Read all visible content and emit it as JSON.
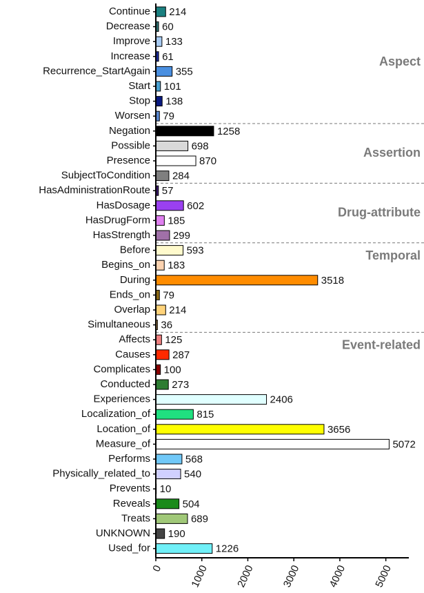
{
  "chart_data": {
    "type": "bar",
    "orientation": "horizontal",
    "xlim": [
      0,
      5500
    ],
    "xticks": [
      0,
      1000,
      2000,
      3000,
      4000,
      5000
    ],
    "groups": [
      {
        "name": "Aspect",
        "categories": [
          "Continue",
          "Decrease",
          "Improve",
          "Increase",
          "Recurrence_StartAgain",
          "Start",
          "Stop",
          "Worsen"
        ],
        "values": [
          214,
          60,
          133,
          61,
          355,
          101,
          138,
          79
        ],
        "colors": [
          "#1a8080",
          "#2f7070",
          "#a8cbf2",
          "#1a2a9a",
          "#4a8fe0",
          "#4aa2d2",
          "#0a1a80",
          "#5a88d0"
        ]
      },
      {
        "name": "Assertion",
        "categories": [
          "Negation",
          "Possible",
          "Presence",
          "SubjectToCondition"
        ],
        "values": [
          1258,
          698,
          870,
          284
        ],
        "colors": [
          "#000000",
          "#d9d9d9",
          "#ffffff",
          "#7f7f7f"
        ]
      },
      {
        "name": "Drug-attribute",
        "categories": [
          "HasAdministrationRoute",
          "HasDosage",
          "HasDrugForm",
          "HasStrength"
        ],
        "values": [
          57,
          602,
          185,
          299
        ],
        "colors": [
          "#3a1a6a",
          "#9a40f0",
          "#e080f0",
          "#a070a8"
        ]
      },
      {
        "name": "Temporal",
        "categories": [
          "Before",
          "Begins_on",
          "During",
          "Ends_on",
          "Overlap",
          "Simultaneous"
        ],
        "values": [
          593,
          183,
          3518,
          79,
          214,
          36
        ],
        "colors": [
          "#fffacc",
          "#fcd3b0",
          "#ff8c00",
          "#8b6914",
          "#ffd37a",
          "#b08a50"
        ]
      },
      {
        "name": "Event-related",
        "categories": [
          "Affects",
          "Causes",
          "Complicates",
          "Conducted",
          "Experiences",
          "Localization_of",
          "Location_of",
          "Measure_of",
          "Performs",
          "Physically_related_to",
          "Prevents",
          "Reveals",
          "Treats",
          "UNKNOWN",
          "Used_for"
        ],
        "values": [
          125,
          287,
          100,
          273,
          2406,
          815,
          3656,
          5072,
          568,
          540,
          10,
          504,
          689,
          190,
          1226
        ],
        "colors": [
          "#f08080",
          "#ff2a00",
          "#8b0000",
          "#2e7d32",
          "#e0ffff",
          "#20e080",
          "#ffff00",
          "#ffffff",
          "#70c8f8",
          "#d0d0ff",
          "#555555",
          "#1a8a1a",
          "#a0c878",
          "#444444",
          "#70f0f8"
        ]
      }
    ]
  }
}
